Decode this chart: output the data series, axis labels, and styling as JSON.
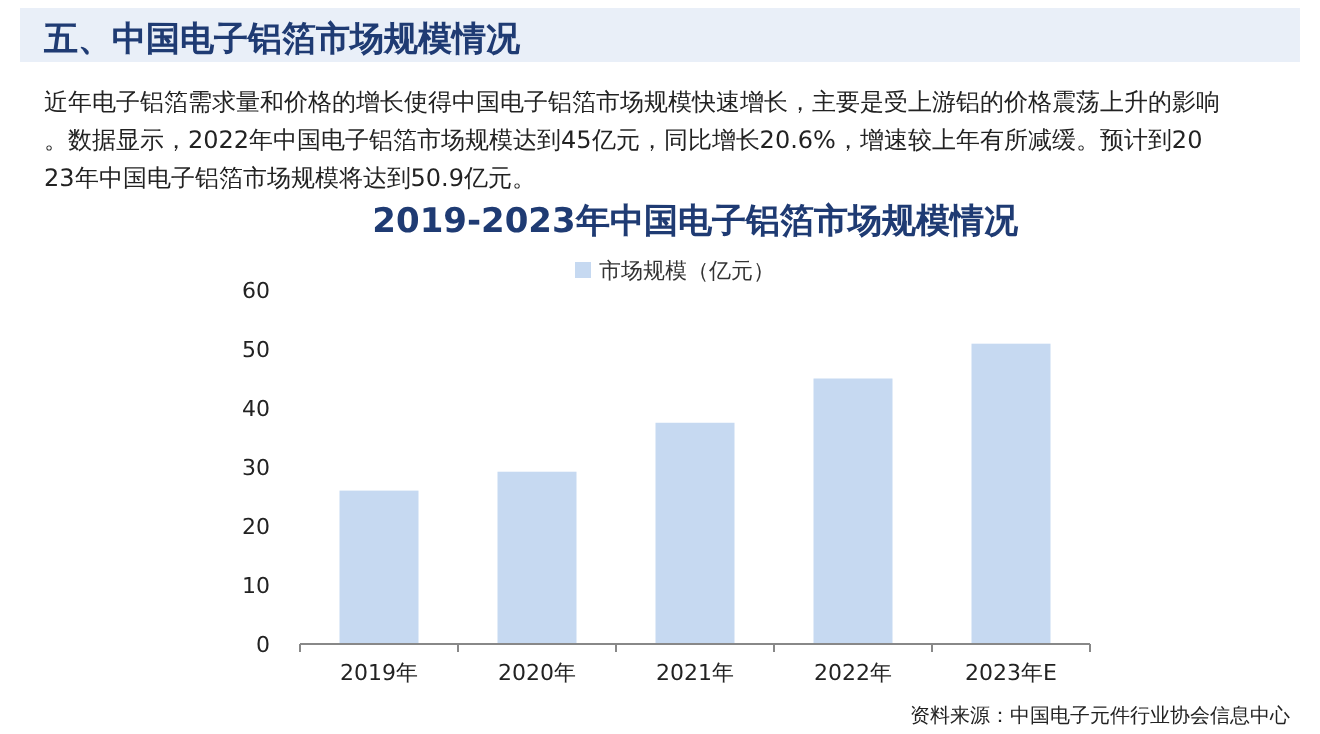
{
  "chart_data": {
    "type": "bar",
    "title": "2019-2023年中国电子铝箔市场规模情况",
    "annotations": [
      "五、中国电子铝箔市场规模情况",
      "近年电子铝箔需求量和价格的增长使得中国电子铝箔市场规模快速增长，主要是受上游铝的价格震荡上升的影响。数据显示，2022年中国电子铝箔市场规模达到45亿元，同比增长20.6%，增速较上年有所减缓。预计到2023年中国电子铝箔市场规模将达到50.9亿元。",
      "资料来源：中国电子元件行业协会信息中心"
    ],
    "categories": [
      "2019年",
      "2020年",
      "2021年",
      "2022年",
      "2023年E"
    ],
    "series": [
      {
        "name": "市场规模（亿元）",
        "color": "#c6d9f1",
        "values": [
          26,
          29.2,
          37.5,
          45,
          50.9
        ]
      }
    ],
    "ylim": [
      0,
      60
    ],
    "yticks": [
      0,
      10,
      20,
      30,
      40,
      50,
      60
    ],
    "grid": false,
    "legend": "top"
  }
}
